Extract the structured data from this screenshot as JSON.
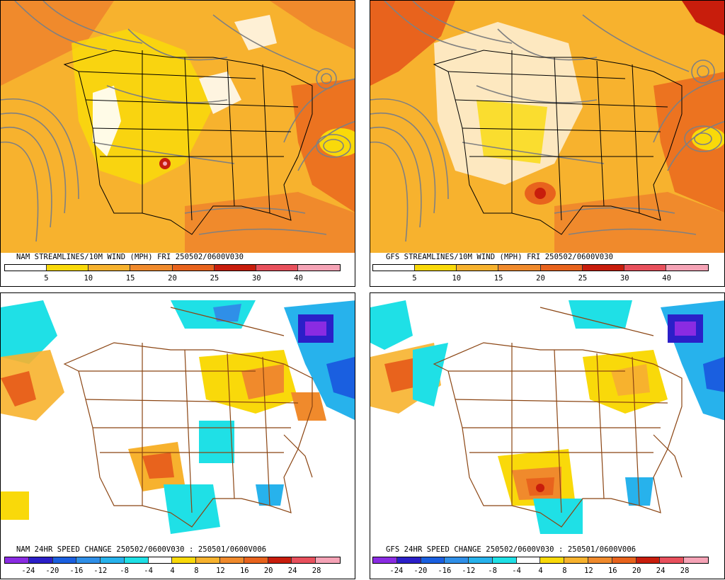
{
  "panels": [
    {
      "id": "nam-wind",
      "caption": "NAM STREAMLINES/10M WIND (MPH)  FRI 250502/0600V030",
      "ticks": [
        "5",
        "10",
        "15",
        "20",
        "25",
        "30",
        "40"
      ],
      "colors": [
        "#ffffff",
        "#f9d90a",
        "#f7b22e",
        "#f08a2c",
        "#e8631d",
        "#c81d0c",
        "#e8505c",
        "#f5a3b6"
      ]
    },
    {
      "id": "gfs-wind",
      "caption": "GFS STREAMLINES/10M WIND (MPH)  FRI 250502/0600V030",
      "ticks": [
        "5",
        "10",
        "15",
        "20",
        "25",
        "30",
        "40"
      ],
      "colors": [
        "#ffffff",
        "#f9d90a",
        "#f7b22e",
        "#f08a2c",
        "#e8631d",
        "#c81d0c",
        "#e8505c",
        "#f5a3b6"
      ]
    },
    {
      "id": "nam-change",
      "caption": "NAM 24HR SPEED CHANGE 250502/0600V030 : 250501/0600V006",
      "ticks": [
        "-24",
        "-20",
        "-16",
        "-12",
        "-8",
        "-4",
        "4",
        "8",
        "12",
        "16",
        "20",
        "24",
        "28"
      ],
      "colors": [
        "#8a2be2",
        "#2b1fc8",
        "#1a5fe0",
        "#2f8fe8",
        "#27b2ec",
        "#1fe0e6",
        "#ffffff",
        "#f9d90a",
        "#f7b22e",
        "#f08a2c",
        "#e8631d",
        "#c81d0c",
        "#e8505c",
        "#f5a3b6"
      ]
    },
    {
      "id": "gfs-change",
      "caption": "GFS 24HR SPEED CHANGE 250502/0600V030 : 250501/0600V006",
      "ticks": [
        "-24",
        "-20",
        "-16",
        "-12",
        "-8",
        "-4",
        "4",
        "8",
        "12",
        "16",
        "20",
        "24",
        "28"
      ],
      "colors": [
        "#8a2be2",
        "#2b1fc8",
        "#1a5fe0",
        "#2f8fe8",
        "#27b2ec",
        "#1fe0e6",
        "#ffffff",
        "#f9d90a",
        "#f7b22e",
        "#f08a2c",
        "#e8631d",
        "#c81d0c",
        "#e8505c",
        "#f5a3b6"
      ]
    }
  ]
}
